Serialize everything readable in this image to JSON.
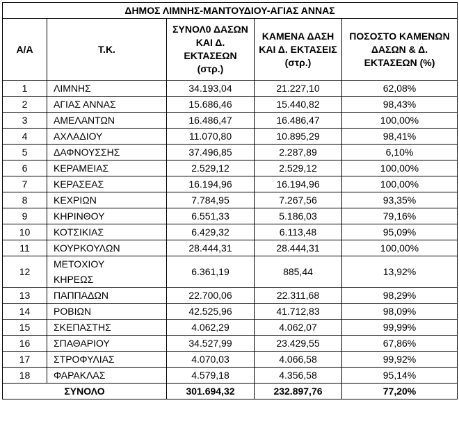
{
  "title": "ΔΗΜΟΣ ΛΙΜΝΗΣ-ΜΑΝΤΟΥΔΙΟΥ-ΑΓΙΑΣ ΑΝΝΑΣ",
  "headers": {
    "aa": "Α/Α",
    "tk": "Τ.Κ.",
    "total_forest": "ΣΥΝΟΛ0 ΔΑΣΩΝ ΚΑΙ Δ. ΕΚΤΑΣΕΩΝ (στρ.)",
    "burned": "ΚΑΜΕΝΑ ΔΑΣΗ ΚΑΙ Δ. ΕΚΤΑΣΕΙΣ (στρ.)",
    "percent": "ΠΟΣΟΣΤΟ ΚΑΜΕΝΩΝ ΔΑΣΩΝ & Δ. ΕΚΤΑΣΕΩΝ (%)"
  },
  "rows": [
    {
      "aa": "1",
      "tk": "ΛΙΜΝΗΣ",
      "total": "34.193,04",
      "burned": "21.227,10",
      "pct": "62,08%"
    },
    {
      "aa": "2",
      "tk": "ΑΓΙΑΣ ΑΝΝΑΣ",
      "total": "15.686,46",
      "burned": "15.440,82",
      "pct": "98,43%"
    },
    {
      "aa": "3",
      "tk": "ΑΜΕΛΑΝΤΩΝ",
      "total": "16.486,47",
      "burned": "16.486,47",
      "pct": "100,00%"
    },
    {
      "aa": "4",
      "tk": "ΑΧΛΑΔΙΟΥ",
      "total": "11.070,80",
      "burned": "10.895,29",
      "pct": "98,41%"
    },
    {
      "aa": "5",
      "tk": "ΔΑΦΝΟΥΣΣΗΣ",
      "total": "37.496,85",
      "burned": "2.287,89",
      "pct": "6,10%"
    },
    {
      "aa": "6",
      "tk": "ΚΕΡΑΜΕΙΑΣ",
      "total": "2.529,12",
      "burned": "2.529,12",
      "pct": "100,00%"
    },
    {
      "aa": "7",
      "tk": "ΚΕΡΑΣΕΑΣ",
      "total": "16.194,96",
      "burned": "16.194,96",
      "pct": "100,00%"
    },
    {
      "aa": "8",
      "tk": "ΚΕΧΡΙΩΝ",
      "total": "7.784,95",
      "burned": "7.267,56",
      "pct": "93,35%"
    },
    {
      "aa": "9",
      "tk": "ΚΗΡΙΝΘΟΥ",
      "total": "6.551,33",
      "burned": "5.186,03",
      "pct": "79,16%"
    },
    {
      "aa": "10",
      "tk": "ΚΟΤΣΙΚΙΑΣ",
      "total": "6.429,32",
      "burned": "6.113,48",
      "pct": "95,09%"
    },
    {
      "aa": "11",
      "tk": "ΚΟΥΡΚΟΥΛΩΝ",
      "total": "28.444,31",
      "burned": "28.444,31",
      "pct": "100,00%"
    },
    {
      "aa": "12",
      "tk": "ΜΕΤΟΧΙΟΥ ΚΗΡΕΩΣ",
      "total": "6.361,19",
      "burned": "885,44",
      "pct": "13,92%"
    },
    {
      "aa": "13",
      "tk": "ΠΑΠΠΑΔΩΝ",
      "total": "22.700,06",
      "burned": "22.311,68",
      "pct": "98,29%"
    },
    {
      "aa": "14",
      "tk": "ΡΟΒΙΩΝ",
      "total": "42.525,96",
      "burned": "41.712,83",
      "pct": "98,09%"
    },
    {
      "aa": "15",
      "tk": "ΣΚΕΠΑΣΤΗΣ",
      "total": "4.062,29",
      "burned": "4.062,07",
      "pct": "99,99%"
    },
    {
      "aa": "16",
      "tk": "ΣΠΑΘΑΡΙΟΥ",
      "total": "34.527,99",
      "burned": "23.429,55",
      "pct": "67,86%"
    },
    {
      "aa": "17",
      "tk": "ΣΤΡΟΦΥΛΙΑΣ",
      "total": "4.070,03",
      "burned": "4.066,58",
      "pct": "99,92%"
    },
    {
      "aa": "18",
      "tk": "ΦΑΡΑΚΛΑΣ",
      "total": "4.579,18",
      "burned": "4.356,58",
      "pct": "95,14%"
    }
  ],
  "totals": {
    "label": "ΣΥΝΟΛΟ",
    "total": "301.694,32",
    "burned": "232.897,76",
    "pct": "77,20%"
  }
}
